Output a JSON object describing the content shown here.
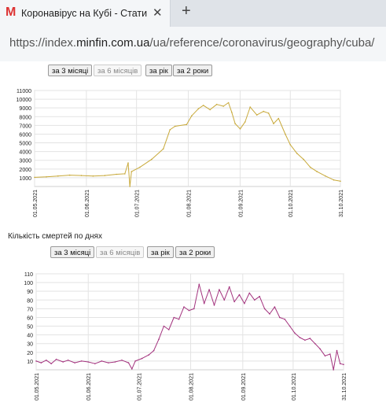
{
  "browser": {
    "tab": {
      "logo": "M",
      "title": "Коронавірус на Кубі - Статисти",
      "close": "✕"
    },
    "new_tab": "+",
    "url": {
      "prefix": "https://index.",
      "domain": "minfin.com.ua",
      "rest": "/ua/reference/coronavirus/geography/cuba/"
    }
  },
  "colors": {
    "cases_line": "#c8a93a",
    "deaths_line": "#a3337e"
  },
  "charts": [
    {
      "title": "",
      "buttons": [
        "за 3 місяці",
        "за 6 місяців",
        "за рік",
        "за 2 роки"
      ],
      "selected_button": 1
    },
    {
      "title": "Кількість смертей по днях",
      "buttons": [
        "за 3 місяці",
        "за 6 місяців",
        "за рік",
        "за 2 роки"
      ],
      "selected_button": 1
    }
  ],
  "chart_data": [
    {
      "type": "line",
      "title": "",
      "x_ticks": [
        "01.05.2021",
        "01.06.2021",
        "01.07.2021",
        "01.08.2021",
        "01.09.2021",
        "01.10.2021",
        "31.10.2021"
      ],
      "y_ticks": [
        1000,
        2000,
        3000,
        4000,
        5000,
        6000,
        7000,
        8000,
        9000,
        10000,
        11000
      ],
      "ylim": [
        0,
        11000
      ],
      "grid": true,
      "series": [
        {
          "color": "#c8a93a",
          "points": [
            [
              "2021-05-01",
              1050
            ],
            [
              "2021-05-08",
              1100
            ],
            [
              "2021-05-15",
              1200
            ],
            [
              "2021-05-22",
              1300
            ],
            [
              "2021-05-29",
              1250
            ],
            [
              "2021-06-05",
              1200
            ],
            [
              "2021-06-12",
              1250
            ],
            [
              "2021-06-19",
              1400
            ],
            [
              "2021-06-24",
              1450
            ],
            [
              "2021-06-26",
              2700
            ],
            [
              "2021-06-27",
              0
            ],
            [
              "2021-06-28",
              1700
            ],
            [
              "2021-07-03",
              2200
            ],
            [
              "2021-07-10",
              3100
            ],
            [
              "2021-07-17",
              4300
            ],
            [
              "2021-07-21",
              6500
            ],
            [
              "2021-07-24",
              6900
            ],
            [
              "2021-07-31",
              7100
            ],
            [
              "2021-08-03",
              8100
            ],
            [
              "2021-08-07",
              8900
            ],
            [
              "2021-08-10",
              9300
            ],
            [
              "2021-08-14",
              8800
            ],
            [
              "2021-08-18",
              9400
            ],
            [
              "2021-08-22",
              9200
            ],
            [
              "2021-08-25",
              9600
            ],
            [
              "2021-08-27",
              8500
            ],
            [
              "2021-08-29",
              7200
            ],
            [
              "2021-09-01",
              6600
            ],
            [
              "2021-09-04",
              7400
            ],
            [
              "2021-09-07",
              9100
            ],
            [
              "2021-09-11",
              8200
            ],
            [
              "2021-09-15",
              8600
            ],
            [
              "2021-09-18",
              8400
            ],
            [
              "2021-09-21",
              7200
            ],
            [
              "2021-09-24",
              7800
            ],
            [
              "2021-09-28",
              6000
            ],
            [
              "2021-10-01",
              4800
            ],
            [
              "2021-10-05",
              3800
            ],
            [
              "2021-10-09",
              3100
            ],
            [
              "2021-10-13",
              2200
            ],
            [
              "2021-10-17",
              1700
            ],
            [
              "2021-10-22",
              1200
            ],
            [
              "2021-10-27",
              750
            ],
            [
              "2021-10-31",
              600
            ]
          ]
        }
      ]
    },
    {
      "type": "line",
      "title": "Кількість смертей по днях",
      "x_ticks": [
        "01.05.2021",
        "01.06.2021",
        "01.07.2021",
        "01.08.2021",
        "01.09.2021",
        "01.10.2021",
        "31.10.2021"
      ],
      "y_ticks": [
        10,
        20,
        30,
        40,
        50,
        60,
        70,
        80,
        90,
        100,
        110
      ],
      "ylim": [
        0,
        110
      ],
      "grid": true,
      "series": [
        {
          "color": "#a3337e",
          "points": [
            [
              "2021-05-01",
              10
            ],
            [
              "2021-05-04",
              8
            ],
            [
              "2021-05-07",
              11
            ],
            [
              "2021-05-10",
              7
            ],
            [
              "2021-05-13",
              12
            ],
            [
              "2021-05-17",
              9
            ],
            [
              "2021-05-20",
              11
            ],
            [
              "2021-05-24",
              8
            ],
            [
              "2021-05-28",
              10
            ],
            [
              "2021-06-01",
              9
            ],
            [
              "2021-06-05",
              7
            ],
            [
              "2021-06-09",
              10
            ],
            [
              "2021-06-13",
              8
            ],
            [
              "2021-06-17",
              9
            ],
            [
              "2021-06-21",
              11
            ],
            [
              "2021-06-25",
              8
            ],
            [
              "2021-06-27",
              1
            ],
            [
              "2021-06-29",
              10
            ],
            [
              "2021-07-03",
              13
            ],
            [
              "2021-07-07",
              17
            ],
            [
              "2021-07-10",
              22
            ],
            [
              "2021-07-13",
              35
            ],
            [
              "2021-07-16",
              50
            ],
            [
              "2021-07-19",
              46
            ],
            [
              "2021-07-22",
              60
            ],
            [
              "2021-07-25",
              58
            ],
            [
              "2021-07-28",
              72
            ],
            [
              "2021-07-31",
              68
            ],
            [
              "2021-08-03",
              70
            ],
            [
              "2021-08-06",
              98
            ],
            [
              "2021-08-09",
              76
            ],
            [
              "2021-08-12",
              92
            ],
            [
              "2021-08-15",
              74
            ],
            [
              "2021-08-18",
              92
            ],
            [
              "2021-08-21",
              80
            ],
            [
              "2021-08-24",
              95
            ],
            [
              "2021-08-27",
              78
            ],
            [
              "2021-08-30",
              86
            ],
            [
              "2021-09-02",
              76
            ],
            [
              "2021-09-05",
              88
            ],
            [
              "2021-09-08",
              80
            ],
            [
              "2021-09-11",
              84
            ],
            [
              "2021-09-14",
              70
            ],
            [
              "2021-09-17",
              64
            ],
            [
              "2021-09-20",
              72
            ],
            [
              "2021-09-23",
              60
            ],
            [
              "2021-09-26",
              58
            ],
            [
              "2021-09-29",
              50
            ],
            [
              "2021-10-02",
              42
            ],
            [
              "2021-10-05",
              37
            ],
            [
              "2021-10-08",
              34
            ],
            [
              "2021-10-11",
              36
            ],
            [
              "2021-10-14",
              30
            ],
            [
              "2021-10-17",
              24
            ],
            [
              "2021-10-20",
              16
            ],
            [
              "2021-10-23",
              18
            ],
            [
              "2021-10-25",
              0
            ],
            [
              "2021-10-27",
              22
            ],
            [
              "2021-10-29",
              7
            ],
            [
              "2021-10-31",
              6
            ]
          ]
        }
      ]
    }
  ]
}
